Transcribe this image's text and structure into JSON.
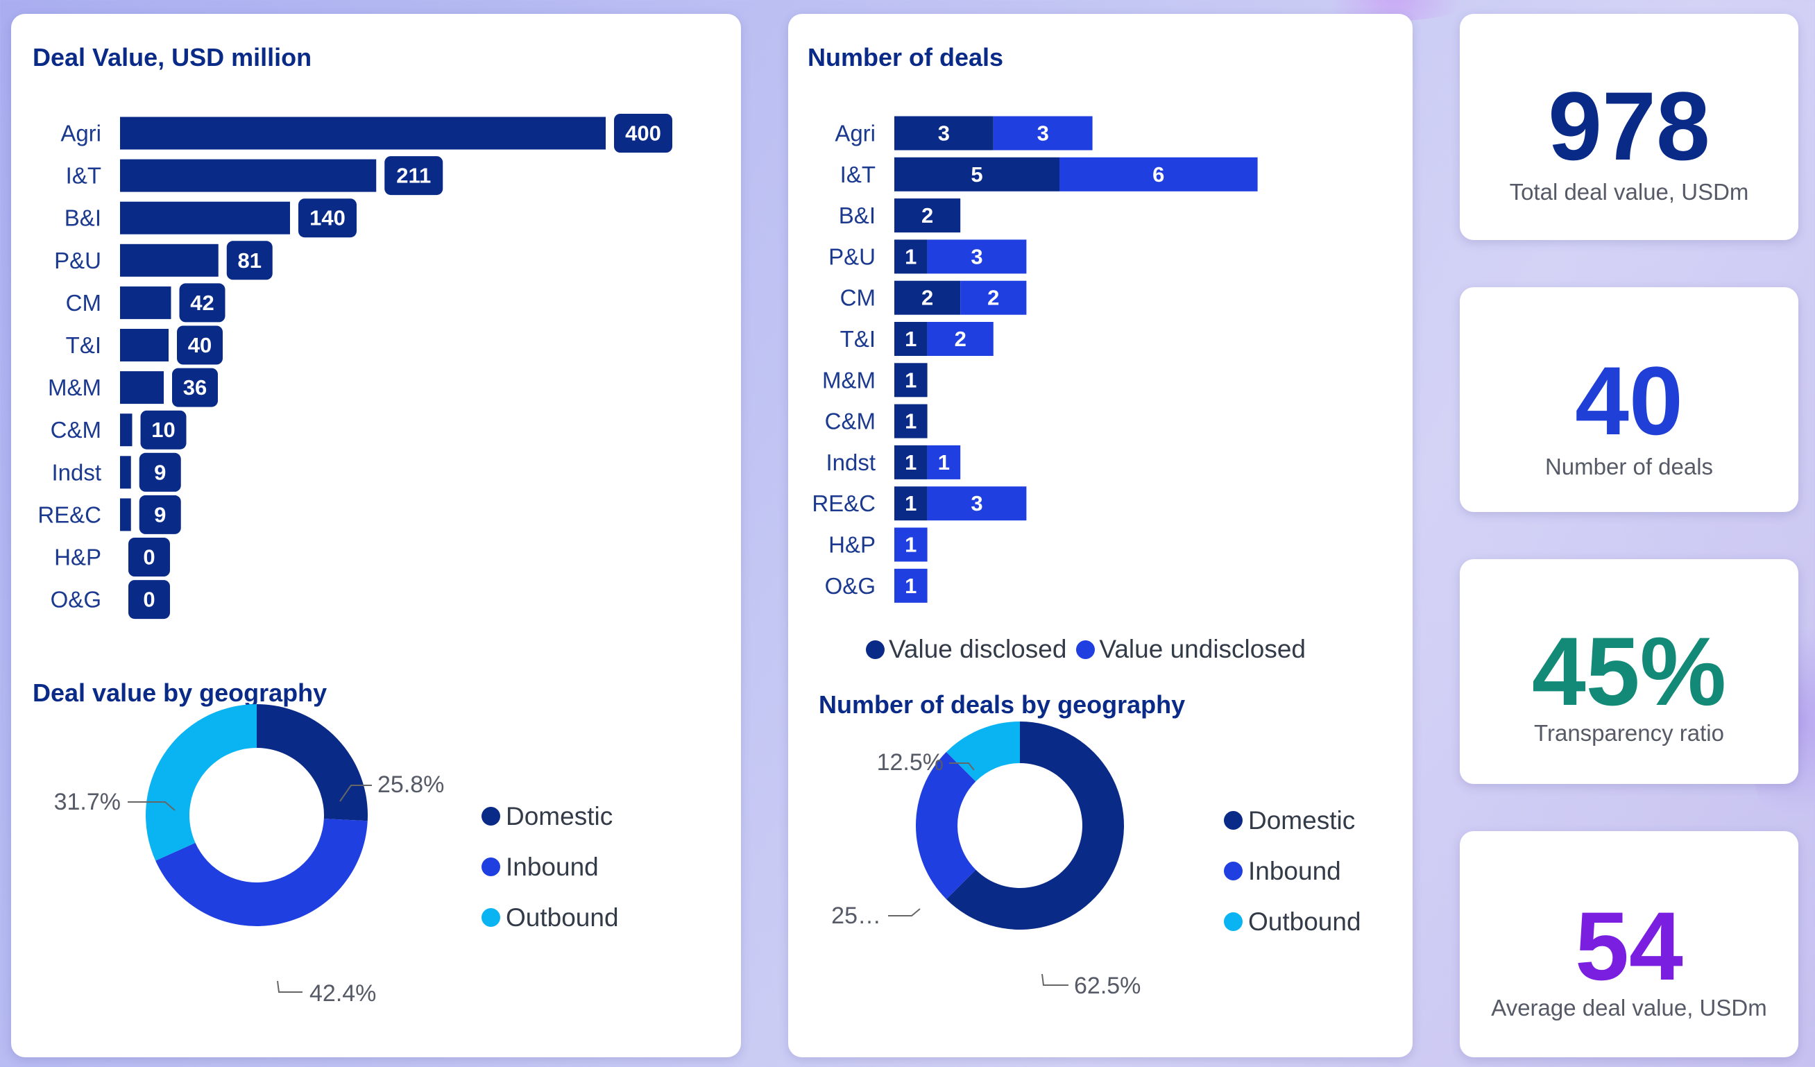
{
  "colors": {
    "dark_navy": "#0a2a88",
    "royal_blue": "#1f3fe0",
    "sky": "#0ab4f2",
    "kpi_blue": "#0a2a88",
    "kpi_mid_blue": "#1f3fd6",
    "kpi_teal": "#138a78",
    "kpi_purple": "#7a1fe0"
  },
  "panels": {
    "left": {
      "value_title": "Deal Value, USD million",
      "geo_title": "Deal value by geography"
    },
    "middle": {
      "count_title": "Number of deals",
      "geo_title": "Number of deals by geography"
    }
  },
  "kpis": [
    {
      "value": "978",
      "label": "Total deal value, USDm",
      "color": "#0a2a88"
    },
    {
      "value": "40",
      "label": "Number of deals",
      "color": "#1f3fd6"
    },
    {
      "value": "45%",
      "label": "Transparency ratio",
      "color": "#138a78"
    },
    {
      "value": "54",
      "label": "Average deal value, USDm",
      "color": "#7a1fe0"
    }
  ],
  "legends": {
    "status": [
      "Value disclosed",
      "Value undisclosed"
    ],
    "geo": [
      "Domestic",
      "Inbound",
      "Outbound"
    ]
  },
  "chart_data": [
    {
      "type": "bar",
      "orientation": "horizontal",
      "title": "Deal Value, USD million",
      "categories": [
        "Agri",
        "I&T",
        "B&I",
        "P&U",
        "CM",
        "T&I",
        "M&M",
        "C&M",
        "Indst",
        "RE&C",
        "H&P",
        "O&G"
      ],
      "values": [
        400,
        211,
        140,
        81,
        42,
        40,
        36,
        10,
        9,
        9,
        0,
        0
      ],
      "data_labels": [
        "400",
        "211",
        "140",
        "81",
        "42",
        "40",
        "36",
        "10",
        "9",
        "9",
        "0",
        "0"
      ],
      "color": "#0a2a88"
    },
    {
      "type": "bar",
      "orientation": "horizontal",
      "stacked": true,
      "title": "Number of deals",
      "categories": [
        "Agri",
        "I&T",
        "B&I",
        "P&U",
        "CM",
        "T&I",
        "M&M",
        "C&M",
        "Indst",
        "RE&C",
        "H&P",
        "O&G"
      ],
      "series": [
        {
          "name": "Value disclosed",
          "values": [
            3,
            5,
            2,
            1,
            2,
            1,
            1,
            1,
            1,
            1,
            0,
            0
          ],
          "color": "#0a2a88"
        },
        {
          "name": "Value undisclosed",
          "values": [
            3,
            6,
            0,
            3,
            2,
            2,
            0,
            0,
            1,
            3,
            1,
            1
          ],
          "color": "#1f3fe0"
        }
      ],
      "legend": "bottom"
    },
    {
      "type": "pie",
      "donut": true,
      "title": "Deal value by geography",
      "categories": [
        "Domestic",
        "Inbound",
        "Outbound"
      ],
      "values": [
        25.8,
        42.4,
        31.7
      ],
      "data_labels": [
        "25.8%",
        "42.4%",
        "31.7%"
      ],
      "colors": [
        "#0a2a88",
        "#1f3fe0",
        "#0ab4f2"
      ],
      "legend": "right"
    },
    {
      "type": "pie",
      "donut": true,
      "title": "Number of deals by geography",
      "categories": [
        "Domestic",
        "Inbound",
        "Outbound"
      ],
      "values": [
        62.5,
        25,
        12.5
      ],
      "data_labels": [
        "62.5%",
        "25…",
        "12.5%"
      ],
      "colors": [
        "#0a2a88",
        "#1f3fe0",
        "#0ab4f2"
      ],
      "legend": "right"
    }
  ]
}
